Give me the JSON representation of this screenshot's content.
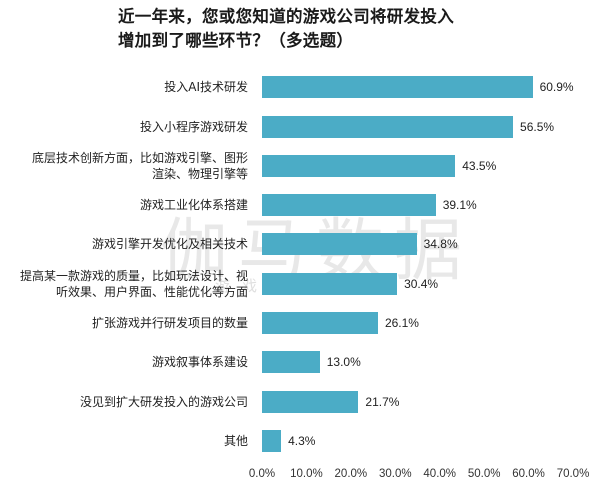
{
  "chart_data": {
    "type": "bar",
    "orientation": "horizontal",
    "title": "近一年来，您或您知道的游戏公司将研发投入增加到了哪些环节？（多选题）",
    "title_lines": [
      "近一年来，您或您知道的游戏公司将研发投入",
      "增加到了哪些环节？（多选题）"
    ],
    "categories": [
      "投入AI技术研发",
      "投入小程序游戏研发",
      "底层技术创新方面，比如游戏引擎、图形渲染、物理引擎等",
      "游戏工业化体系搭建",
      "游戏引擎开发优化及相关技术",
      "提高某一款游戏的质量，比如玩法设计、视听效果、用户界面、性能优化等方面",
      "扩张游戏并行研发项目的数量",
      "游戏叙事体系建设",
      "没见到扩大研发投入的游戏公司",
      "其他"
    ],
    "category_lines": [
      [
        "投入AI技术研发"
      ],
      [
        "投入小程序游戏研发"
      ],
      [
        "底层技术创新方面，比如游戏引擎、图形",
        "渲染、物理引擎等"
      ],
      [
        "游戏工业化体系搭建"
      ],
      [
        "游戏引擎开发优化及相关技术"
      ],
      [
        "提高某一款游戏的质量，比如玩法设计、视",
        "听效果、用户界面、性能优化等方面"
      ],
      [
        "扩张游戏并行研发项目的数量"
      ],
      [
        "游戏叙事体系建设"
      ],
      [
        "没见到扩大研发投入的游戏公司"
      ],
      [
        "其他"
      ]
    ],
    "values": [
      60.9,
      56.5,
      43.5,
      39.1,
      34.8,
      30.4,
      26.1,
      13.0,
      21.7,
      4.3
    ],
    "value_labels": [
      "60.9%",
      "56.5%",
      "43.5%",
      "39.1%",
      "34.8%",
      "30.4%",
      "26.1%",
      "13.0%",
      "21.7%",
      "4.3%"
    ],
    "xlabel": "",
    "ylabel": "",
    "xlim": [
      0,
      70
    ],
    "x_ticks": [
      "0.0%",
      "10.0%",
      "20.0%",
      "30.0%",
      "40.0%",
      "50.0%",
      "60.0%",
      "70.0%"
    ],
    "grid": false,
    "legend": null,
    "bar_color": "#4bacc6"
  },
  "watermark": {
    "main": "伽马数据",
    "sub": "游戏产业报告"
  }
}
